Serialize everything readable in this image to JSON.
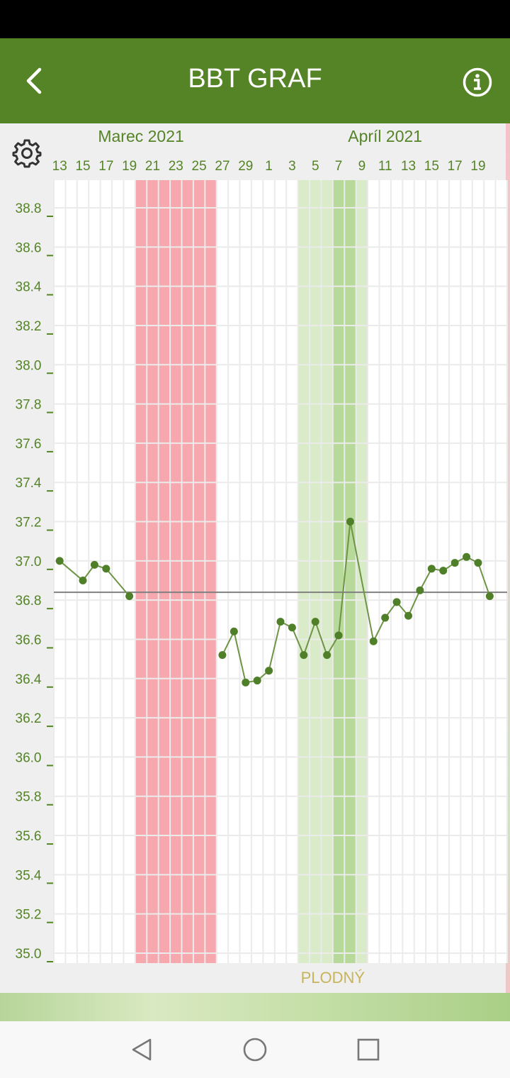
{
  "header": {
    "title": "BBT GRAF",
    "back_icon": "chevron-left-icon",
    "info_icon": "info-icon"
  },
  "toolbar": {
    "settings_icon": "gear-icon"
  },
  "months": [
    "Marec 2021",
    "Apríl 2021"
  ],
  "nav": {
    "back_icon": "triangle-back-icon",
    "home_icon": "circle-home-icon",
    "recents_icon": "square-recents-icon"
  },
  "colors": {
    "appbar": "#558427",
    "line": "#6e9446",
    "dot": "#4f7f28",
    "period": "#f7a8ae",
    "fertile_light": "#d9ebc8",
    "fertile_dark": "#b7d99a",
    "label_green": "#558427",
    "fertile_label": "#c7b45a"
  },
  "chart_data": {
    "type": "line",
    "title": "",
    "xlabel": "",
    "ylabel": "",
    "ylim": [
      35.0,
      38.8
    ],
    "yticks": [
      "38.8",
      "38.6",
      "38.4",
      "38.2",
      "38.0",
      "37.8",
      "37.6",
      "37.4",
      "37.2",
      "37.0",
      "36.8",
      "36.6",
      "36.4",
      "36.2",
      "36.0",
      "35.8",
      "35.6",
      "35.4",
      "35.2",
      "35.0"
    ],
    "x_tick_labels": [
      "13",
      "15",
      "17",
      "19",
      "21",
      "23",
      "25",
      "27",
      "29",
      "1",
      "3",
      "5",
      "7",
      "9",
      "11",
      "13",
      "15",
      "17",
      "19"
    ],
    "days": [
      "2021-03-13",
      "2021-03-14",
      "2021-03-15",
      "2021-03-16",
      "2021-03-17",
      "2021-03-18",
      "2021-03-19",
      "2021-03-20",
      "2021-03-21",
      "2021-03-22",
      "2021-03-23",
      "2021-03-24",
      "2021-03-25",
      "2021-03-26",
      "2021-03-27",
      "2021-03-28",
      "2021-03-29",
      "2021-03-30",
      "2021-03-31",
      "2021-04-01",
      "2021-04-02",
      "2021-04-03",
      "2021-04-04",
      "2021-04-05",
      "2021-04-06",
      "2021-04-07",
      "2021-04-08",
      "2021-04-09",
      "2021-04-10",
      "2021-04-11",
      "2021-04-12",
      "2021-04-13",
      "2021-04-14",
      "2021-04-15",
      "2021-04-16",
      "2021-04-17",
      "2021-04-18",
      "2021-04-19",
      "2021-04-20"
    ],
    "segments": [
      {
        "x": [
          "2021-03-13",
          "2021-03-15",
          "2021-03-16",
          "2021-03-17",
          "2021-03-19"
        ],
        "y": [
          37.0,
          36.9,
          36.98,
          36.96,
          36.82
        ]
      },
      {
        "x": [
          "2021-03-27",
          "2021-03-28",
          "2021-03-29",
          "2021-03-30",
          "2021-03-31",
          "2021-04-01",
          "2021-04-02",
          "2021-04-03",
          "2021-04-04",
          "2021-04-05",
          "2021-04-06",
          "2021-04-07",
          "2021-04-09",
          "2021-04-10",
          "2021-04-11",
          "2021-04-12",
          "2021-04-13",
          "2021-04-14",
          "2021-04-15",
          "2021-04-16",
          "2021-04-17",
          "2021-04-18",
          "2021-04-19"
        ],
        "y": [
          36.52,
          36.64,
          36.38,
          36.39,
          36.44,
          36.69,
          36.66,
          36.52,
          36.69,
          36.52,
          36.62,
          37.2,
          36.59,
          36.71,
          36.79,
          36.72,
          36.85,
          36.96,
          36.95,
          36.99,
          37.02,
          36.99,
          36.82
        ]
      }
    ],
    "coverline": 36.84,
    "period_days": [
      "2021-03-20",
      "2021-03-21",
      "2021-03-22",
      "2021-03-23",
      "2021-03-24",
      "2021-03-25",
      "2021-03-26"
    ],
    "fertile_days": [
      "2021-04-03",
      "2021-04-04",
      "2021-04-05",
      "2021-04-06",
      "2021-04-07",
      "2021-04-08"
    ],
    "peak_fertile_days": [
      "2021-04-06",
      "2021-04-07"
    ],
    "fertile_label": "PLODNÝ",
    "grid": true
  }
}
